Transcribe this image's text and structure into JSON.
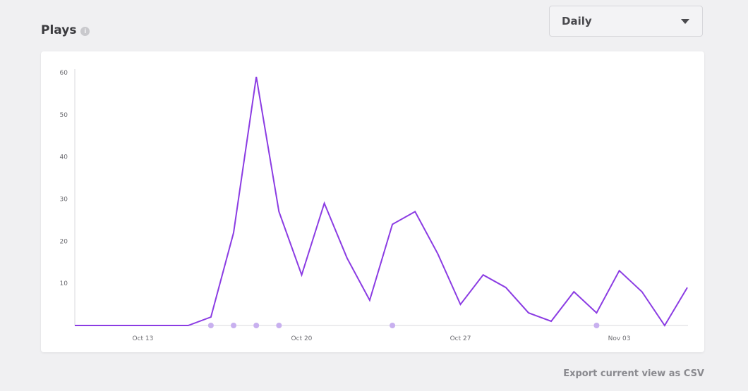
{
  "header": {
    "title": "Plays",
    "info_icon": "info-icon"
  },
  "period_select": {
    "value": "Daily",
    "icon": "caret-down-icon"
  },
  "export_link": "Export current view as CSV",
  "colors": {
    "line": "#8b3ce3",
    "marker": "#c8b0ef",
    "axis": "#d8d8dc",
    "background": "#f0f0f2"
  },
  "chart_data": {
    "type": "line",
    "title": "",
    "xlabel": "",
    "ylabel": "",
    "ylim": [
      0,
      60
    ],
    "yticks": [
      10,
      20,
      30,
      40,
      50,
      60
    ],
    "xticks": [
      "Oct 13",
      "Oct 20",
      "Oct 27",
      "Nov 03"
    ],
    "grid": false,
    "legend": "none",
    "x_start": "2023-10-10",
    "x_end": "2023-11-06",
    "series": [
      {
        "values": [
          {
            "date": "2023-10-10",
            "y": 0
          },
          {
            "date": "2023-10-11",
            "y": 0
          },
          {
            "date": "2023-10-12",
            "y": 0
          },
          {
            "date": "2023-10-13",
            "y": 0
          },
          {
            "date": "2023-10-14",
            "y": 0
          },
          {
            "date": "2023-10-15",
            "y": 0
          },
          {
            "date": "2023-10-16",
            "y": 2
          },
          {
            "date": "2023-10-17",
            "y": 22
          },
          {
            "date": "2023-10-18",
            "y": 59
          },
          {
            "date": "2023-10-19",
            "y": 27
          },
          {
            "date": "2023-10-20",
            "y": 12
          },
          {
            "date": "2023-10-21",
            "y": 29
          },
          {
            "date": "2023-10-22",
            "y": 16
          },
          {
            "date": "2023-10-23",
            "y": 6
          },
          {
            "date": "2023-10-24",
            "y": 24
          },
          {
            "date": "2023-10-25",
            "y": 27
          },
          {
            "date": "2023-10-26",
            "y": 17
          },
          {
            "date": "2023-10-27",
            "y": 5
          },
          {
            "date": "2023-10-28",
            "y": 12
          },
          {
            "date": "2023-10-29",
            "y": 9
          },
          {
            "date": "2023-10-30",
            "y": 3
          },
          {
            "date": "2023-10-31",
            "y": 1
          },
          {
            "date": "2023-11-01",
            "y": 8
          },
          {
            "date": "2023-11-02",
            "y": 3
          },
          {
            "date": "2023-11-03",
            "y": 13
          },
          {
            "date": "2023-11-04",
            "y": 8
          },
          {
            "date": "2023-11-05",
            "y": 0
          },
          {
            "date": "2023-11-06",
            "y": 9
          }
        ]
      }
    ],
    "event_markers": [
      "2023-10-16",
      "2023-10-17",
      "2023-10-18",
      "2023-10-19",
      "2023-10-24",
      "2023-11-02"
    ]
  }
}
